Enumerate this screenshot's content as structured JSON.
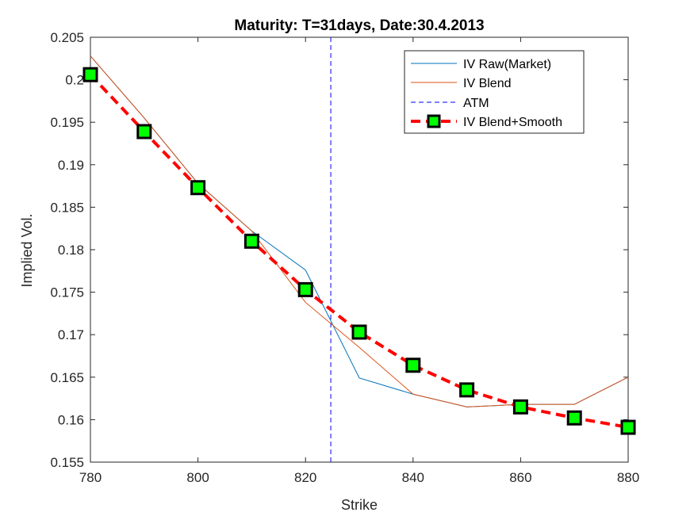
{
  "chart_data": {
    "type": "line",
    "title": "Maturity: T=31days, Date:30.4.2013",
    "xlabel": "Strike",
    "ylabel": "Implied Vol.",
    "xlim": [
      780,
      880
    ],
    "ylim": [
      0.155,
      0.205
    ],
    "xticks": [
      "780",
      "800",
      "820",
      "840",
      "860",
      "880"
    ],
    "yticks": [
      "0.155",
      "0.16",
      "0.165",
      "0.17",
      "0.175",
      "0.18",
      "0.185",
      "0.19",
      "0.195",
      "0.2",
      "0.205"
    ],
    "grid": false,
    "legend_position": "top-right",
    "series": [
      {
        "name": "IV Raw(Market)",
        "color": "#0072BD",
        "style": "solid",
        "x": [
          780,
          790,
          800,
          810,
          820,
          830,
          840,
          850,
          860,
          870,
          880
        ],
        "y": [
          0.2028,
          0.1955,
          0.1878,
          0.1822,
          0.1776,
          0.1649,
          0.163,
          0.1615,
          0.1618,
          0.1618,
          0.165
        ]
      },
      {
        "name": "IV Blend",
        "color": "#D95319",
        "style": "solid",
        "x": [
          780,
          790,
          800,
          810,
          820,
          830,
          840,
          850,
          860,
          870,
          880
        ],
        "y": [
          0.2028,
          0.1955,
          0.1878,
          0.1822,
          0.1738,
          0.1685,
          0.163,
          0.1615,
          0.1618,
          0.1618,
          0.165
        ]
      },
      {
        "name": "ATM",
        "color": "#0000FF",
        "style": "dashed-vertical",
        "x": [
          824.7,
          824.7
        ],
        "y": [
          0.155,
          0.205
        ]
      },
      {
        "name": "IV Blend+Smooth",
        "color": "#FF0000",
        "marker_fill": "#00FF00",
        "marker_edge": "#000000",
        "style": "dashed-square-markers",
        "x": [
          780,
          790,
          800,
          810,
          820,
          830,
          840,
          850,
          860,
          870,
          880
        ],
        "y": [
          0.2006,
          0.1939,
          0.1873,
          0.181,
          0.1753,
          0.1703,
          0.1664,
          0.1635,
          0.1615,
          0.1602,
          0.1591
        ]
      }
    ]
  }
}
